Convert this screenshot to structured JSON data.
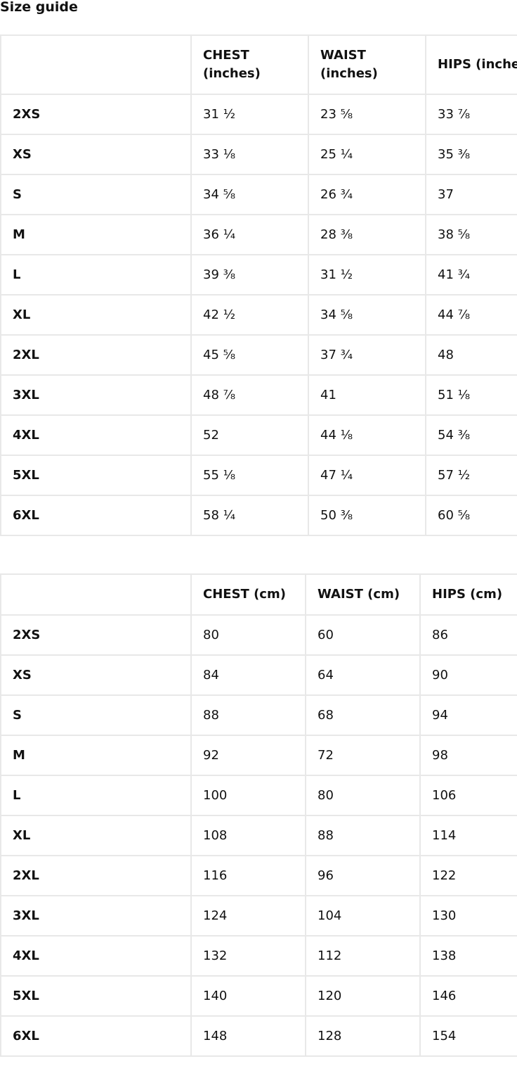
{
  "title": "Size guide",
  "tables": [
    {
      "headers": [
        "",
        "CHEST (inches)",
        "WAIST (inches)",
        "HIPS (inches)"
      ],
      "rows": [
        [
          "2XS",
          "31 ½",
          "23 ⅝",
          "33 ⅞"
        ],
        [
          "XS",
          "33 ⅛",
          "25 ¼",
          "35 ⅜"
        ],
        [
          "S",
          "34 ⅝",
          "26 ¾",
          "37"
        ],
        [
          "M",
          "36 ¼",
          "28 ⅜",
          "38 ⅝"
        ],
        [
          "L",
          "39 ⅜",
          "31 ½",
          "41 ¾"
        ],
        [
          "XL",
          "42 ½",
          "34 ⅝",
          "44 ⅞"
        ],
        [
          "2XL",
          "45 ⅝",
          "37 ¾",
          "48"
        ],
        [
          "3XL",
          "48 ⅞",
          "41",
          "51 ⅛"
        ],
        [
          "4XL",
          "52",
          "44 ⅛",
          "54 ⅜"
        ],
        [
          "5XL",
          "55 ⅛",
          "47 ¼",
          "57 ½"
        ],
        [
          "6XL",
          "58 ¼",
          "50 ⅜",
          "60 ⅝"
        ]
      ]
    },
    {
      "headers": [
        "",
        "CHEST (cm)",
        "WAIST (cm)",
        "HIPS (cm)"
      ],
      "rows": [
        [
          "2XS",
          "80",
          "60",
          "86"
        ],
        [
          "XS",
          "84",
          "64",
          "90"
        ],
        [
          "S",
          "88",
          "68",
          "94"
        ],
        [
          "M",
          "92",
          "72",
          "98"
        ],
        [
          "L",
          "100",
          "80",
          "106"
        ],
        [
          "XL",
          "108",
          "88",
          "114"
        ],
        [
          "2XL",
          "116",
          "96",
          "122"
        ],
        [
          "3XL",
          "124",
          "104",
          "130"
        ],
        [
          "4XL",
          "132",
          "112",
          "138"
        ],
        [
          "5XL",
          "140",
          "120",
          "146"
        ],
        [
          "6XL",
          "148",
          "128",
          "154"
        ]
      ]
    }
  ]
}
